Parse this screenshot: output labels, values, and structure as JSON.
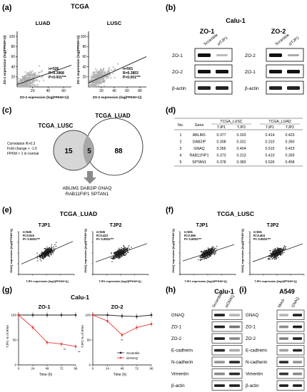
{
  "panels": {
    "a": {
      "label": "(a)",
      "title": "TCGA",
      "scatter_titles": [
        "LUAD",
        "LUSC"
      ],
      "ylabel": "ZO-1 expression (log(FPKM+1))",
      "xlabel": "ZO-2 expression (log(FPKM+1))",
      "luad_x_ticks": [
        "20",
        "40",
        "60"
      ],
      "luad_y_ticks": [
        "20",
        "40",
        "60",
        "80",
        "100"
      ],
      "lusc_x_ticks": [
        "20",
        "40",
        "60",
        "80"
      ],
      "lusc_y_ticks": [
        "20",
        "40",
        "60",
        "80",
        "100"
      ],
      "luad_stats": [
        "n=526",
        "R=0.3968",
        "P<0.001***"
      ],
      "lusc_stats": [
        "n=501",
        "R=0.3853",
        "P<0.001***"
      ]
    },
    "b": {
      "label": "(b)",
      "title": "Calu-1",
      "left": {
        "header": "ZO-1",
        "lanes": [
          "Scramble",
          "siTJP1"
        ],
        "rows": [
          "ZO-1",
          "ZO-2",
          "β-actin"
        ]
      },
      "right": {
        "header": "ZO-2",
        "lanes": [
          "Scramble",
          "siTJP2"
        ],
        "rows": [
          "ZO-2",
          "ZO-1",
          "β-actin"
        ]
      }
    },
    "c": {
      "label": "(c)",
      "set_left": "TCGA_LUSC",
      "set_right": "TCGA_LUAD",
      "count_left": "15",
      "count_overlap": "5",
      "count_right": "88",
      "criteria": [
        "Correlation R>0.3",
        "Fold change < -1.5",
        "FPKM > 1 in normal"
      ],
      "genes_line1": "ABLIM1 DAB2IP GNAQ",
      "genes_line2": "RAB11FIP1 SPTAN1"
    },
    "d": {
      "label": "(d)",
      "head_no": "No.",
      "head_gene": "Gene",
      "group1": "TCGA_LUSC",
      "group2": "TCGA_LUAD",
      "sub": [
        "TJP1",
        "TJP2",
        "TJP1",
        "TJP2"
      ],
      "rows": [
        {
          "no": "1",
          "gene": "ABLIM1",
          "v": [
            "0.377",
            "0.333",
            "0.414",
            "0.423"
          ]
        },
        {
          "no": "2",
          "gene": "DAB2IP",
          "v": [
            "0.308",
            "0.331",
            "0.310",
            "0.350"
          ]
        },
        {
          "no": "3",
          "gene": "GNAQ",
          "v": [
            "0.356",
            "0.404",
            "0.515",
            "0.423"
          ]
        },
        {
          "no": "4",
          "gene": "RAB11FIP1",
          "v": [
            "0.373",
            "0.313",
            "0.410",
            "0.359"
          ]
        },
        {
          "no": "5",
          "gene": "SPTAN1",
          "v": [
            "0.378",
            "0.383",
            "0.526",
            "0.458"
          ]
        }
      ]
    },
    "e": {
      "label": "(e)",
      "title": "TCGA_LUAD",
      "plots": [
        {
          "title": "TJP1",
          "xlabel": "TJP1 expression [log2(FPKM+1)]",
          "ylabel": "GNAQ expression [log2(FPKM+1)]",
          "stats": [
            "n=526",
            "R=0.515",
            "P< 0.0001***"
          ]
        },
        {
          "title": "TJP2",
          "xlabel": "TJP2 expression [log2(FPKM+1)]",
          "ylabel": "GNAQ expression [log2(FPKM+1)]",
          "stats": [
            "n=526",
            "R=0.423",
            "P< 0.0001***"
          ]
        }
      ]
    },
    "f": {
      "label": "(f)",
      "title": "TCGA_LUSC",
      "plots": [
        {
          "title": "TJP1",
          "xlabel": "TJP1 expression [log2(FPKM+1)]",
          "ylabel": "GNAQ expression [log2(FPKM+1)]",
          "stats": [
            "n=501",
            "R=0.356",
            "P< 0.0001***"
          ]
        },
        {
          "title": "TJP2",
          "xlabel": "TJP2 expression [log2(FPKM+1)]",
          "ylabel": "GNAQ expression [log2(FPKM+1)]",
          "stats": [
            "n=501",
            "R=0.404",
            "P< 0.0001***"
          ]
        }
      ]
    },
    "g": {
      "label": "(g)",
      "title": "Calu-1",
      "plots": [
        {
          "title": "ZO-1",
          "ylabel": "TJP1 % of RNA"
        },
        {
          "title": "ZO-2",
          "ylabel": "TJP2 % of RNA"
        }
      ],
      "xlabel": "Time (h)",
      "legend": [
        "Scramble",
        "siGNAQ"
      ]
    },
    "h": {
      "label": "(h)",
      "title": "Calu-1",
      "lanes": [
        "Scramble",
        "siGNAQ"
      ],
      "rows": [
        "GNAQ",
        "ZO-1",
        "ZO-2",
        "E-cadherin",
        "N-cadherin",
        "Vimentin",
        "β-actin"
      ]
    },
    "i": {
      "label": "(i)",
      "title": "A549",
      "lanes": [
        "Mock",
        "GNAQ"
      ],
      "rows": [
        "GNAQ",
        "ZO-1",
        "ZO-2",
        "E-cadherin",
        "N-cadherin",
        "Vimentin",
        "β-actin"
      ]
    }
  },
  "chart_data": [
    {
      "type": "scatter",
      "panel": "a",
      "title": "LUAD",
      "xlabel": "ZO-2 expression (log(FPKM+1))",
      "ylabel": "ZO-1 expression (log(FPKM+1))",
      "xlim": [
        0,
        70
      ],
      "ylim": [
        0,
        110
      ],
      "fit": {
        "x": [
          0,
          70
        ],
        "y": [
          5,
          43
        ]
      }
    },
    {
      "type": "scatter",
      "panel": "a",
      "title": "LUSC",
      "xlabel": "ZO-2 expression (log(FPKM+1))",
      "ylabel": "ZO-1 expression (log(FPKM+1))",
      "xlim": [
        0,
        90
      ],
      "ylim": [
        0,
        110
      ],
      "fit": {
        "x": [
          0,
          90
        ],
        "y": [
          8,
          60
        ]
      }
    },
    {
      "type": "line",
      "panel": "g",
      "title": "ZO-1",
      "x": [
        0,
        24,
        48,
        72,
        96
      ],
      "xlabel": "Time (h)",
      "ylabel": "TJP1 % of RNA",
      "ylim": [
        0,
        100
      ],
      "series": [
        {
          "name": "Scramble",
          "values": [
            100,
            100,
            100,
            100,
            100
          ]
        },
        {
          "name": "siGNAQ",
          "values": [
            100,
            75,
            45,
            42,
            37
          ]
        }
      ]
    },
    {
      "type": "line",
      "panel": "g",
      "title": "ZO-2",
      "x": [
        0,
        24,
        48,
        72,
        96
      ],
      "xlabel": "Time (h)",
      "ylabel": "TJP2 % of RNA",
      "ylim": [
        0,
        100
      ],
      "series": [
        {
          "name": "Scramble",
          "values": [
            100,
            100,
            98,
            97,
            100
          ]
        },
        {
          "name": "siGNAQ",
          "values": [
            100,
            88,
            60,
            75,
            82
          ]
        }
      ]
    }
  ]
}
